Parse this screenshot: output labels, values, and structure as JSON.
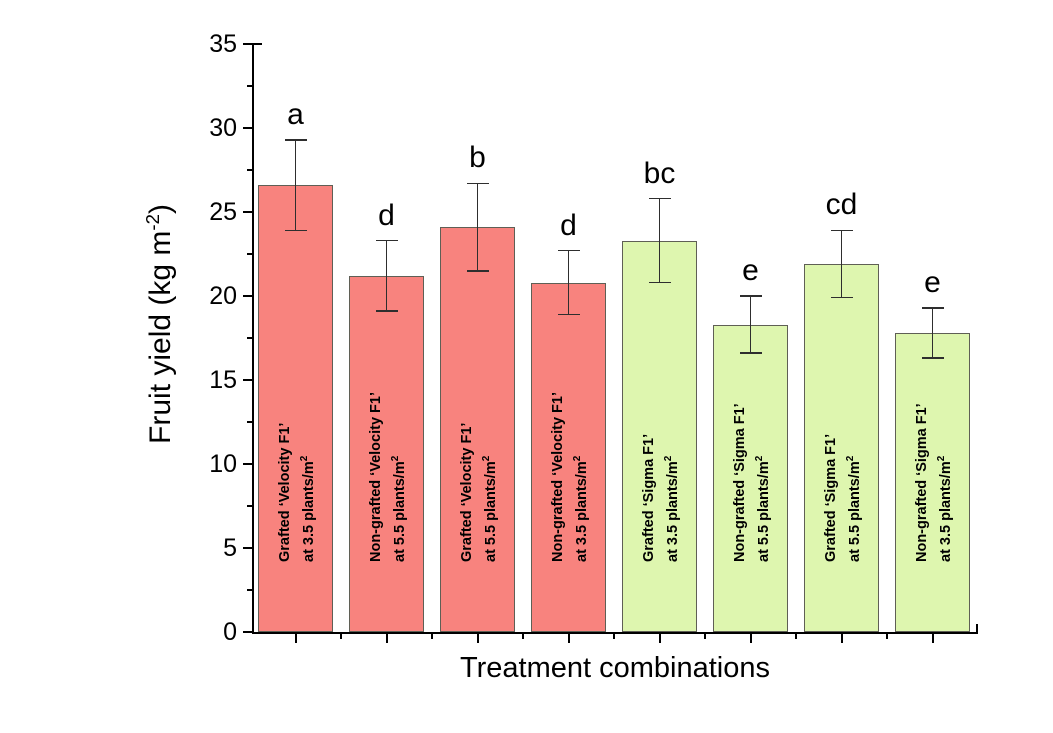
{
  "chart_data": {
    "type": "bar",
    "title": "",
    "xlabel": "Treatment combinations",
    "ylabel": {
      "main": "Fruit yield (kg m",
      "sup": "-2",
      "end": ")"
    },
    "ylim": [
      0,
      35
    ],
    "ytick_major_step": 5,
    "ytick_minor_step": 2.5,
    "ytick_labels": [
      "0",
      "5",
      "10",
      "15",
      "20",
      "25",
      "30",
      "35"
    ],
    "grid": false,
    "legend": "none",
    "series_colors": {
      "velocity": "#f8837e",
      "sigma": "#def6af"
    },
    "bar_border_color": "#5f5f55",
    "error_bar_color": "#2e2e2e",
    "bars": [
      {
        "line1": "Grafted ‘Velocity F1’",
        "line2": "at 3.5 plants/m",
        "line2_sup": "2",
        "value": 26.6,
        "error": 2.7,
        "letter": "a",
        "series": "velocity"
      },
      {
        "line1": "Non-grafted ‘Velocity F1’",
        "line2": "at 5.5 plants/m",
        "line2_sup": "2",
        "value": 21.2,
        "error": 2.1,
        "letter": "d",
        "series": "velocity"
      },
      {
        "line1": "Grafted ‘Velocity F1’",
        "line2": "at 5.5 plants/m",
        "line2_sup": "2",
        "value": 24.1,
        "error": 2.6,
        "letter": "b",
        "series": "velocity"
      },
      {
        "line1": "Non-grafted ‘Velocity F1’",
        "line2": "at 3.5 plants/m",
        "line2_sup": "2",
        "value": 20.8,
        "error": 1.9,
        "letter": "d",
        "series": "velocity"
      },
      {
        "line1": "Grafted ‘Sigma F1’",
        "line2": "at 3.5 plants/m",
        "line2_sup": "2",
        "value": 23.3,
        "error": 2.5,
        "letter": "bc",
        "series": "sigma"
      },
      {
        "line1": "Non-grafted ‘Sigma F1’",
        "line2": "at 5.5 plants/m",
        "line2_sup": "2",
        "value": 18.3,
        "error": 1.7,
        "letter": "e",
        "series": "sigma"
      },
      {
        "line1": "Grafted ‘Sigma F1’",
        "line2": "at 5.5 plants/m",
        "line2_sup": "2",
        "value": 21.9,
        "error": 2.0,
        "letter": "cd",
        "series": "sigma"
      },
      {
        "line1": "Non-grafted ‘Sigma F1’",
        "line2": "at 3.5 plants/m",
        "line2_sup": "2",
        "value": 17.8,
        "error": 1.5,
        "letter": "e",
        "series": "sigma"
      }
    ]
  }
}
